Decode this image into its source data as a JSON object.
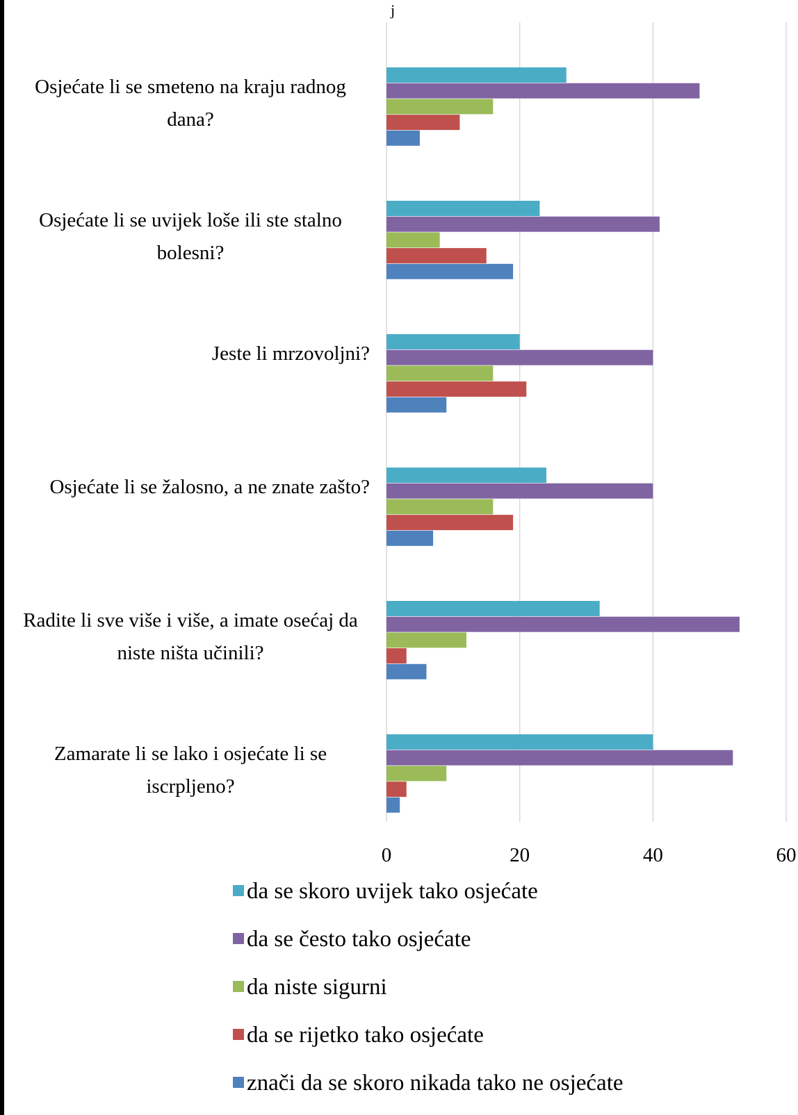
{
  "chart_data": {
    "type": "bar",
    "orientation": "horizontal",
    "title_fragment": "j",
    "categories": [
      "Osjećate li se smeteno na kraju radnog dana?",
      "Osjećate li se uvijek loše ili ste stalno bolesni?",
      "Jeste li mrzovoljni?",
      "Osjećate li se žalosno, a ne znate zašto?",
      "Radite li sve više i više, a imate osećaj da niste ništa učinili?",
      "Zamarate li se lako i osjećate li se iscrpljeno?"
    ],
    "series": [
      {
        "name": "da se skoro uvijek tako osjećate",
        "color": "#4bacc6",
        "values": [
          27,
          23,
          20,
          24,
          32,
          40
        ]
      },
      {
        "name": "da se često tako osjećate",
        "color": "#8064a2",
        "values": [
          47,
          41,
          40,
          40,
          53,
          52
        ]
      },
      {
        "name": "da niste sigurni",
        "color": "#9bbb59",
        "values": [
          16,
          8,
          16,
          16,
          12,
          9
        ]
      },
      {
        "name": "da se rijetko tako osjećate",
        "color": "#c0504d",
        "values": [
          11,
          15,
          21,
          19,
          3,
          3
        ]
      },
      {
        "name": " znači da se skoro nikada tako ne osjećate",
        "color": "#4f81bd",
        "values": [
          5,
          19,
          9,
          7,
          6,
          2
        ]
      }
    ],
    "xlim": [
      0,
      60
    ],
    "xticks": [
      0,
      20,
      40,
      60
    ],
    "grid": true,
    "legend_position": "bottom"
  }
}
